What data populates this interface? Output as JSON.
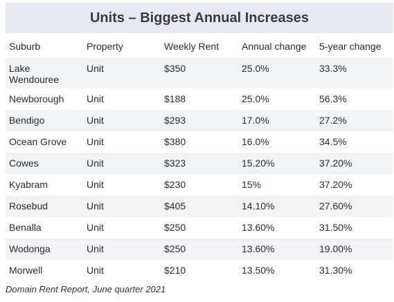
{
  "title": "Units – Biggest Annual Increases",
  "headers": [
    "Suburb",
    "Property",
    "Weekly Rent",
    "Annual change",
    "5-year change"
  ],
  "rows": [
    [
      "Lake Wendouree",
      "Unit",
      "$350",
      "25.0%",
      "33.3%"
    ],
    [
      "Newborough",
      "Unit",
      "$188",
      "25.0%",
      "56.3%"
    ],
    [
      "Bendigo",
      "Unit",
      "$293",
      "17.0%",
      "27.2%"
    ],
    [
      "Ocean Grove",
      "Unit",
      "$380",
      "16.0%",
      "34.5%"
    ],
    [
      "Cowes",
      "Unit",
      "$323",
      "15.20%",
      "37.20%"
    ],
    [
      "Kyabram",
      "Unit",
      "$230",
      "15%",
      "37.20%"
    ],
    [
      "Rosebud",
      "Unit",
      "$405",
      "14.10%",
      "27.60%"
    ],
    [
      "Benalla",
      "Unit",
      "$250",
      "13.60%",
      "31.50%"
    ],
    [
      "Wodonga",
      "Unit",
      "$250",
      "13.60%",
      "19.00%"
    ],
    [
      "Morwell",
      "Unit",
      "$210",
      "13.50%",
      "31.30%"
    ]
  ],
  "source": "Domain Rent Report, June quarter 2021"
}
